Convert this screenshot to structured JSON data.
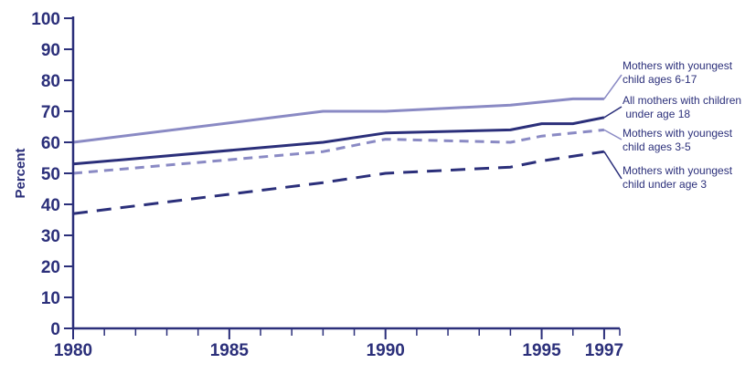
{
  "chart_data": {
    "type": "line",
    "title": "",
    "xlabel": "",
    "ylabel": "Percent",
    "ylim": [
      0,
      100
    ],
    "xlim": [
      1980,
      1997.5
    ],
    "y_ticks": [
      "0",
      "10",
      "20",
      "30",
      "40",
      "50",
      "60",
      "70",
      "80",
      "90",
      "100"
    ],
    "x_ticks": [
      {
        "value": 1980,
        "label": "1980"
      },
      {
        "value": 1985,
        "label": "1985"
      },
      {
        "value": 1990,
        "label": "1990"
      },
      {
        "value": 1995,
        "label": "1995"
      },
      {
        "value": 1997,
        "label": "1997"
      }
    ],
    "grid": false,
    "legend_position": "right, labels at line ends",
    "series": [
      {
        "name": "Mothers with youngest child ages 6-17",
        "label_lines": [
          "Mothers with youngest",
          "child ages 6-17"
        ],
        "color": "#8a8ac4",
        "dash": "solid",
        "points": [
          [
            1980,
            60
          ],
          [
            1988,
            70
          ],
          [
            1990,
            70
          ],
          [
            1994,
            72
          ],
          [
            1996,
            74
          ],
          [
            1997,
            74
          ]
        ]
      },
      {
        "name": "All mothers with children under age 18",
        "label_lines": [
          "All mothers with children",
          " under age 18"
        ],
        "color": "#2b2f7a",
        "dash": "solid",
        "points": [
          [
            1980,
            53
          ],
          [
            1988,
            60
          ],
          [
            1990,
            63
          ],
          [
            1994,
            64
          ],
          [
            1995,
            66
          ],
          [
            1996,
            66
          ],
          [
            1997,
            68
          ]
        ]
      },
      {
        "name": "Mothers with youngest child ages 3-5",
        "label_lines": [
          "Mothers with youngest",
          "child ages 3-5"
        ],
        "color": "#8a8ac4",
        "dash": "dashed",
        "points": [
          [
            1980,
            50
          ],
          [
            1988,
            57
          ],
          [
            1990,
            61
          ],
          [
            1994,
            60
          ],
          [
            1995,
            62
          ],
          [
            1997,
            64
          ]
        ]
      },
      {
        "name": "Mothers with youngest child under age 3",
        "label_lines": [
          "Mothers with youngest",
          "child under age 3"
        ],
        "color": "#2b2f7a",
        "dash": "dashed",
        "points": [
          [
            1980,
            37
          ],
          [
            1988,
            47
          ],
          [
            1990,
            50
          ],
          [
            1994,
            52
          ],
          [
            1995,
            54
          ],
          [
            1997,
            57
          ]
        ]
      }
    ]
  }
}
